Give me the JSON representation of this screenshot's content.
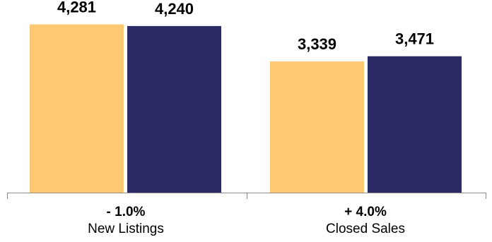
{
  "chart_data": {
    "type": "bar",
    "title": "",
    "xlabel": "",
    "ylabel": "",
    "ylim": [
      0,
      4400
    ],
    "grid": false,
    "legend": "none",
    "categories": [
      {
        "label": "New Listings",
        "change": "- 1.0%"
      },
      {
        "label": "Closed Sales",
        "change": "+ 4.0%"
      }
    ],
    "series": [
      {
        "color": "#FDC872",
        "values": [
          4281,
          3339
        ],
        "labels": [
          "4,281",
          "3,339"
        ]
      },
      {
        "color": "#2B2C66",
        "values": [
          4240,
          3471
        ],
        "labels": [
          "4,240",
          "3,471"
        ]
      }
    ],
    "axis_color": "#8C8C8C"
  }
}
